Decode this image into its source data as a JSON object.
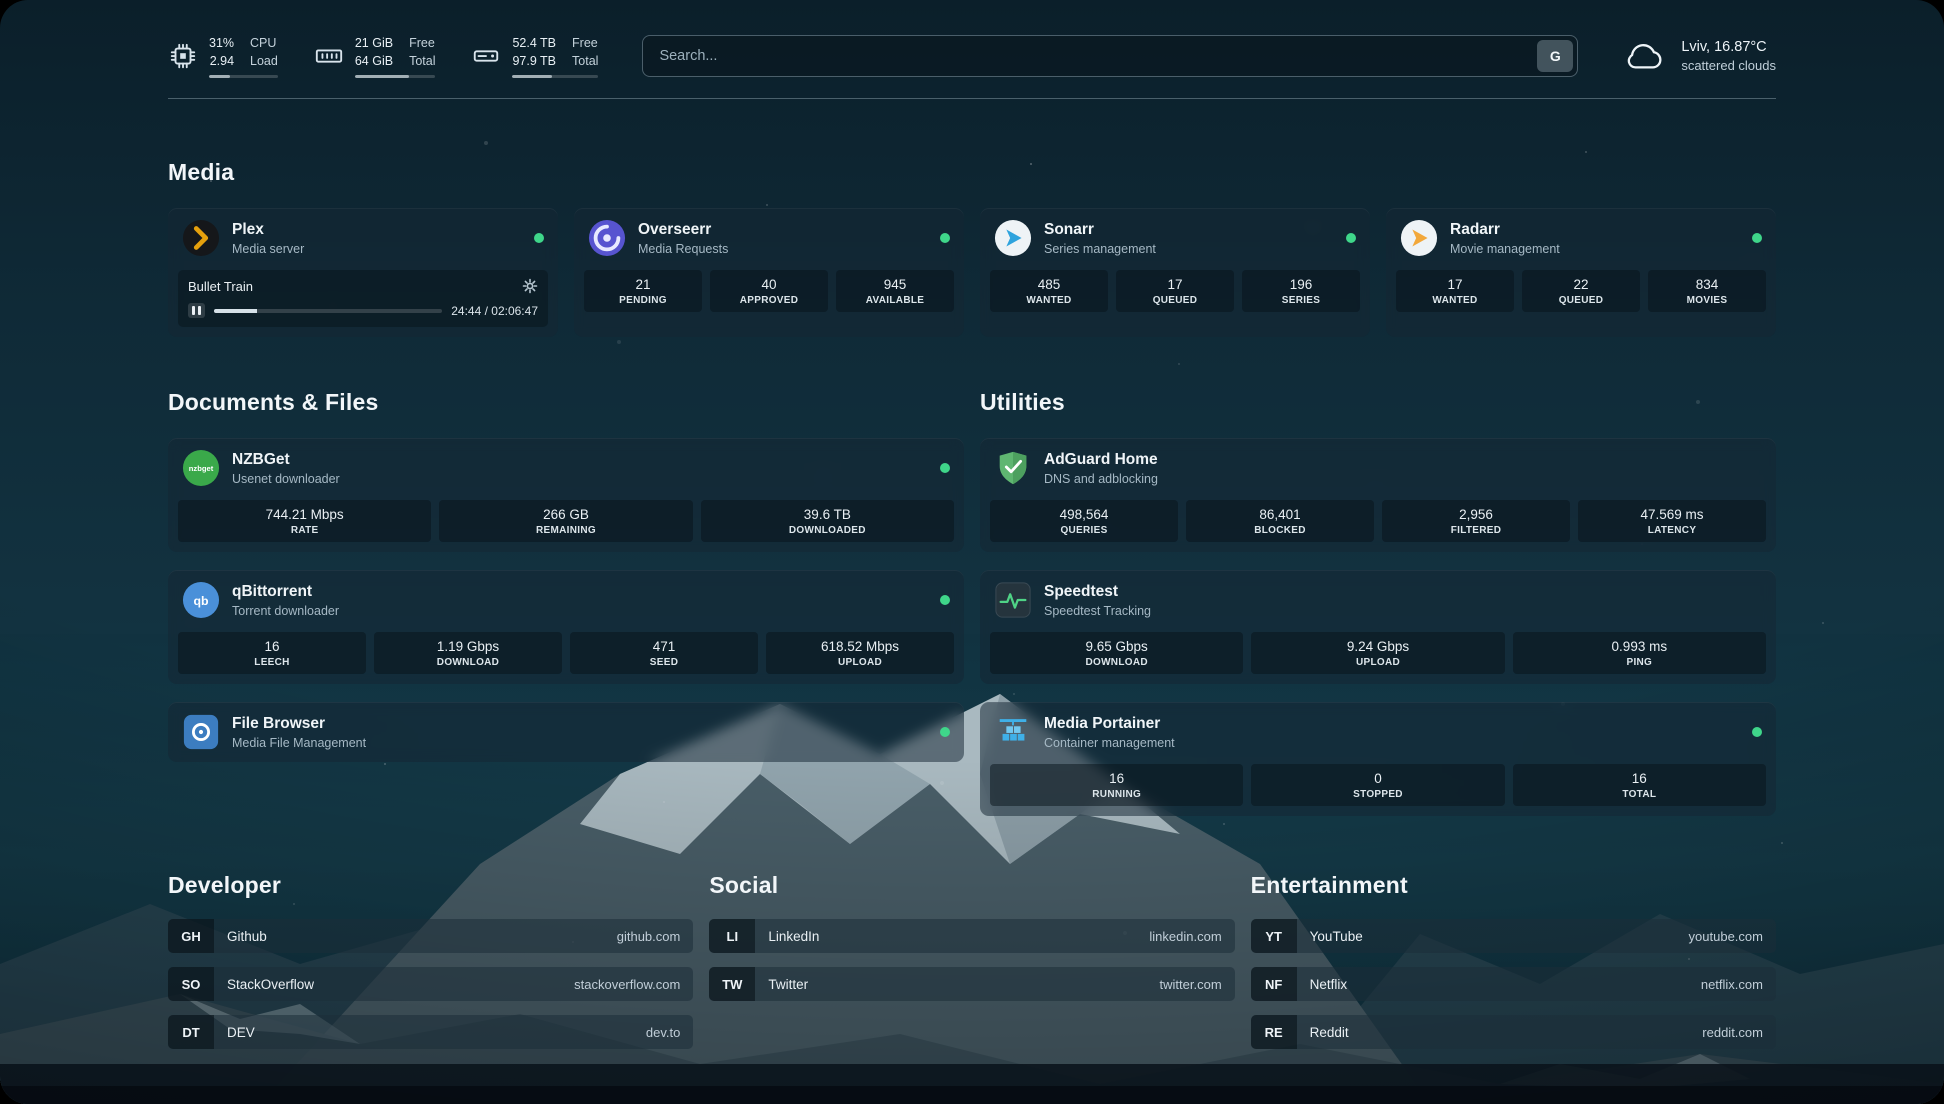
{
  "colors": {
    "status_online": "#3fd68a",
    "background_teal": "#11303d",
    "plex_amber": "#e5a00d",
    "overseerr_purple": "#5754d0",
    "sonarr_blue": "#2ea3dd",
    "radarr_orange": "#f2a83b",
    "nzbget_green": "#3aa94a",
    "qbittorrent_blue": "#4a90d9",
    "filebrowser_blue": "#3c7dc0",
    "adguard_green": "#5fb671",
    "speedtest_green": "#4fd386",
    "portainer_blue": "#3fb0e8"
  },
  "topbar": {
    "resources": [
      {
        "icon": "cpu-icon",
        "value_top": "31%",
        "value_bottom": "2.94",
        "label_top": "CPU",
        "label_bottom": "Load",
        "progress_pct": 31
      },
      {
        "icon": "memory-icon",
        "value_top": "21 GiB",
        "value_bottom": "64 GiB",
        "label_top": "Free",
        "label_bottom": "Total",
        "progress_pct": 67
      },
      {
        "icon": "disk-icon",
        "value_top": "52.4 TB",
        "value_bottom": "97.9 TB",
        "label_top": "Free",
        "label_bottom": "Total",
        "progress_pct": 46
      }
    ],
    "search": {
      "placeholder": "Search...",
      "provider_button": "G"
    },
    "weather": {
      "location": "Lviv, 16.87°C",
      "condition": "scattered clouds"
    }
  },
  "media": {
    "title": "Media",
    "cards": [
      {
        "name": "Plex",
        "desc": "Media server",
        "status": "online",
        "player": {
          "title": "Bullet Train",
          "time": "24:44 / 02:06:47",
          "progress_pct": 19
        }
      },
      {
        "name": "Overseerr",
        "desc": "Media Requests",
        "status": "online",
        "stats": [
          {
            "value": "21",
            "label": "PENDING"
          },
          {
            "value": "40",
            "label": "APPROVED"
          },
          {
            "value": "945",
            "label": "AVAILABLE"
          }
        ]
      },
      {
        "name": "Sonarr",
        "desc": "Series management",
        "status": "online",
        "stats": [
          {
            "value": "485",
            "label": "WANTED"
          },
          {
            "value": "17",
            "label": "QUEUED"
          },
          {
            "value": "196",
            "label": "SERIES"
          }
        ]
      },
      {
        "name": "Radarr",
        "desc": "Movie management",
        "status": "online",
        "stats": [
          {
            "value": "17",
            "label": "WANTED"
          },
          {
            "value": "22",
            "label": "QUEUED"
          },
          {
            "value": "834",
            "label": "MOVIES"
          }
        ]
      }
    ]
  },
  "documents": {
    "title": "Documents & Files",
    "cards": [
      {
        "name": "NZBGet",
        "desc": "Usenet downloader",
        "status": "online",
        "stats": [
          {
            "value": "744.21 Mbps",
            "label": "RATE"
          },
          {
            "value": "266 GB",
            "label": "REMAINING"
          },
          {
            "value": "39.6 TB",
            "label": "DOWNLOADED"
          }
        ]
      },
      {
        "name": "qBittorrent",
        "desc": "Torrent downloader",
        "status": "online",
        "stats": [
          {
            "value": "16",
            "label": "LEECH"
          },
          {
            "value": "1.19 Gbps",
            "label": "DOWNLOAD"
          },
          {
            "value": "471",
            "label": "SEED"
          },
          {
            "value": "618.52 Mbps",
            "label": "UPLOAD"
          }
        ]
      },
      {
        "name": "File Browser",
        "desc": "Media File Management",
        "status": "online"
      }
    ]
  },
  "utilities": {
    "title": "Utilities",
    "cards": [
      {
        "name": "AdGuard Home",
        "desc": "DNS and adblocking",
        "stats": [
          {
            "value": "498,564",
            "label": "QUERIES"
          },
          {
            "value": "86,401",
            "label": "BLOCKED"
          },
          {
            "value": "2,956",
            "label": "FILTERED"
          },
          {
            "value": "47.569 ms",
            "label": "LATENCY"
          }
        ]
      },
      {
        "name": "Speedtest",
        "desc": "Speedtest Tracking",
        "stats": [
          {
            "value": "9.65 Gbps",
            "label": "DOWNLOAD"
          },
          {
            "value": "9.24 Gbps",
            "label": "UPLOAD"
          },
          {
            "value": "0.993 ms",
            "label": "PING"
          }
        ]
      },
      {
        "name": "Media Portainer",
        "desc": "Container management",
        "status": "online",
        "stats": [
          {
            "value": "16",
            "label": "RUNNING"
          },
          {
            "value": "0",
            "label": "STOPPED"
          },
          {
            "value": "16",
            "label": "TOTAL"
          }
        ]
      }
    ]
  },
  "bookmarks": [
    {
      "title": "Developer",
      "links": [
        {
          "abbr": "GH",
          "name": "Github",
          "url": "github.com"
        },
        {
          "abbr": "SO",
          "name": "StackOverflow",
          "url": "stackoverflow.com"
        },
        {
          "abbr": "DT",
          "name": "DEV",
          "url": "dev.to"
        }
      ]
    },
    {
      "title": "Social",
      "links": [
        {
          "abbr": "LI",
          "name": "LinkedIn",
          "url": "linkedin.com"
        },
        {
          "abbr": "TW",
          "name": "Twitter",
          "url": "twitter.com"
        }
      ]
    },
    {
      "title": "Entertainment",
      "links": [
        {
          "abbr": "YT",
          "name": "YouTube",
          "url": "youtube.com"
        },
        {
          "abbr": "NF",
          "name": "Netflix",
          "url": "netflix.com"
        },
        {
          "abbr": "RE",
          "name": "Reddit",
          "url": "reddit.com"
        }
      ]
    }
  ]
}
